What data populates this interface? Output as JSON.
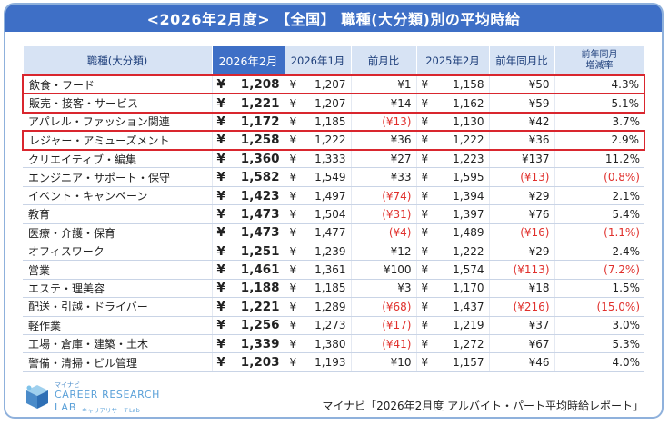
{
  "title": "<2026年2月度> 【全国】 職種(大分類)別の平均時給",
  "headers": [
    "職種(大分類)",
    "2026年2月",
    "2026年1月",
    "前月比",
    "2025年2月",
    "前年同月比",
    "前年同月\n増減率"
  ],
  "currency": "¥",
  "rows": [
    {
      "cat": "飲食・フード",
      "feb26": "1,208",
      "jan26": "1,207",
      "mom": "¥1",
      "feb25": "1,158",
      "yoy": "¥50",
      "rate": "4.3%",
      "highlight": true
    },
    {
      "cat": "販売・接客・サービス",
      "feb26": "1,221",
      "jan26": "1,207",
      "mom": "¥14",
      "feb25": "1,162",
      "yoy": "¥59",
      "rate": "5.1%",
      "highlight": true
    },
    {
      "cat": "アパレル・ファッション関連",
      "feb26": "1,172",
      "jan26": "1,185",
      "mom": "(¥13)",
      "feb25": "1,130",
      "yoy": "¥42",
      "rate": "3.7%",
      "highlight": false
    },
    {
      "cat": "レジャー・アミューズメント",
      "feb26": "1,258",
      "jan26": "1,222",
      "mom": "¥36",
      "feb25": "1,222",
      "yoy": "¥36",
      "rate": "2.9%",
      "highlight": true
    },
    {
      "cat": "クリエイティブ・編集",
      "feb26": "1,360",
      "jan26": "1,333",
      "mom": "¥27",
      "feb25": "1,223",
      "yoy": "¥137",
      "rate": "11.2%",
      "highlight": false
    },
    {
      "cat": "エンジニア・サポート・保守",
      "feb26": "1,582",
      "jan26": "1,549",
      "mom": "¥33",
      "feb25": "1,595",
      "yoy": "(¥13)",
      "rate": "(0.8%)",
      "highlight": false
    },
    {
      "cat": "イベント・キャンペーン",
      "feb26": "1,423",
      "jan26": "1,497",
      "mom": "(¥74)",
      "feb25": "1,394",
      "yoy": "¥29",
      "rate": "2.1%",
      "highlight": false
    },
    {
      "cat": "教育",
      "feb26": "1,473",
      "jan26": "1,504",
      "mom": "(¥31)",
      "feb25": "1,397",
      "yoy": "¥76",
      "rate": "5.4%",
      "highlight": false
    },
    {
      "cat": "医療・介護・保育",
      "feb26": "1,473",
      "jan26": "1,477",
      "mom": "(¥4)",
      "feb25": "1,489",
      "yoy": "(¥16)",
      "rate": "(1.1%)",
      "highlight": false
    },
    {
      "cat": "オフィスワーク",
      "feb26": "1,251",
      "jan26": "1,239",
      "mom": "¥12",
      "feb25": "1,222",
      "yoy": "¥29",
      "rate": "2.4%",
      "highlight": false
    },
    {
      "cat": "営業",
      "feb26": "1,461",
      "jan26": "1,361",
      "mom": "¥100",
      "feb25": "1,574",
      "yoy": "(¥113)",
      "rate": "(7.2%)",
      "highlight": false
    },
    {
      "cat": "エステ・理美容",
      "feb26": "1,188",
      "jan26": "1,185",
      "mom": "¥3",
      "feb25": "1,170",
      "yoy": "¥18",
      "rate": "1.5%",
      "highlight": false
    },
    {
      "cat": "配送・引越・ドライバー",
      "feb26": "1,221",
      "jan26": "1,289",
      "mom": "(¥68)",
      "feb25": "1,437",
      "yoy": "(¥216)",
      "rate": "(15.0%)",
      "highlight": false
    },
    {
      "cat": "軽作業",
      "feb26": "1,256",
      "jan26": "1,273",
      "mom": "(¥17)",
      "feb25": "1,219",
      "yoy": "¥37",
      "rate": "3.0%",
      "highlight": false
    },
    {
      "cat": "工場・倉庫・建築・土木",
      "feb26": "1,339",
      "jan26": "1,380",
      "mom": "(¥41)",
      "feb25": "1,272",
      "yoy": "¥67",
      "rate": "5.3%",
      "highlight": false
    },
    {
      "cat": "警備・清掃・ビル管理",
      "feb26": "1,203",
      "jan26": "1,193",
      "mom": "¥10",
      "feb25": "1,157",
      "yoy": "¥46",
      "rate": "4.0%",
      "highlight": false
    }
  ],
  "colors": {
    "header_selected": "#3e6fc6",
    "header": "#d7e3f4",
    "negative": "#e0302c",
    "highlight_border": "#d9262e",
    "logo": "#5aa0d8"
  },
  "logo": {
    "top": "マイナビ",
    "main": "CAREER RESEARCH",
    "sub": "LAB",
    "sub2": "キャリアリサーチLab"
  },
  "source": "マイナビ「2026年2月度 アルバイト・パート平均時給レポート」"
}
